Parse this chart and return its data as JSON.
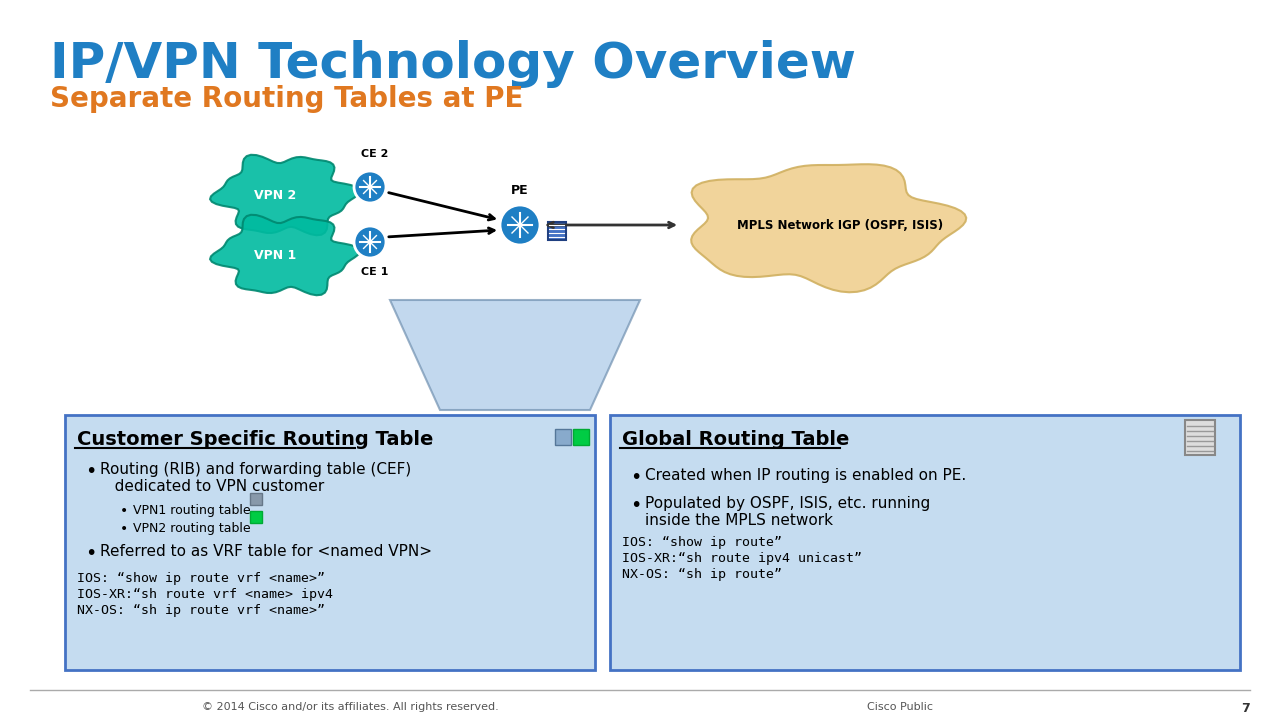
{
  "title": "IP/VPN Technology Overview",
  "subtitle": "Separate Routing Tables at PE",
  "title_color": "#1F7FC4",
  "subtitle_color": "#E07820",
  "bg_color": "#FFFFFF",
  "diagram": {
    "vpn2_label": "VPN 2",
    "vpn1_label": "VPN 1",
    "ce2_label": "CE 2",
    "ce1_label": "CE 1",
    "pe_label": "PE",
    "mpls_label": "MPLS Network IGP (OSPF, ISIS)",
    "cloud_color": "#00B0A0",
    "vpn1_cloud_color": "#00B0A0",
    "mpls_cloud_color": "#F0D070",
    "router_color": "#1F7FC4",
    "pe_router_color": "#1F7FC4"
  },
  "left_box": {
    "title": "Customer Specific Routing Table",
    "bg_color": "#C5DCF0",
    "border_color": "#4472C4",
    "bullet1": "Routing (RIB) and forwarding table (CEF)\ndedicated to VPN customer",
    "sub_bullet1": "VPN1 routing table",
    "sub_bullet2": "VPN2 routing table",
    "vpn1_color": "#8899AA",
    "vpn2_color": "#00CC44",
    "bullet2": "Referred to as VRF table for <named VPN>",
    "code_lines": [
      "IOS: “show ip route vrf <name>”",
      "IOS-XR:“sh route vrf <name> ipv4",
      "NX-OS: “sh ip route vrf <name>”"
    ]
  },
  "right_box": {
    "title": "Global Routing Table",
    "bg_color": "#C5DCF0",
    "border_color": "#4472C4",
    "bullet1": "Created when IP routing is enabled on PE.",
    "bullet2": "Populated by OSPF, ISIS, etc. running\ninside the MPLS network",
    "code_lines": [
      "IOS: “show ip route”",
      "IOS-XR:“sh route ipv4 unicast”",
      "NX-OS: “sh ip route”"
    ]
  },
  "footer_left": "© 2014 Cisco and/or its affiliates. All rights reserved.",
  "footer_right": "Cisco Public",
  "footer_page": "7"
}
